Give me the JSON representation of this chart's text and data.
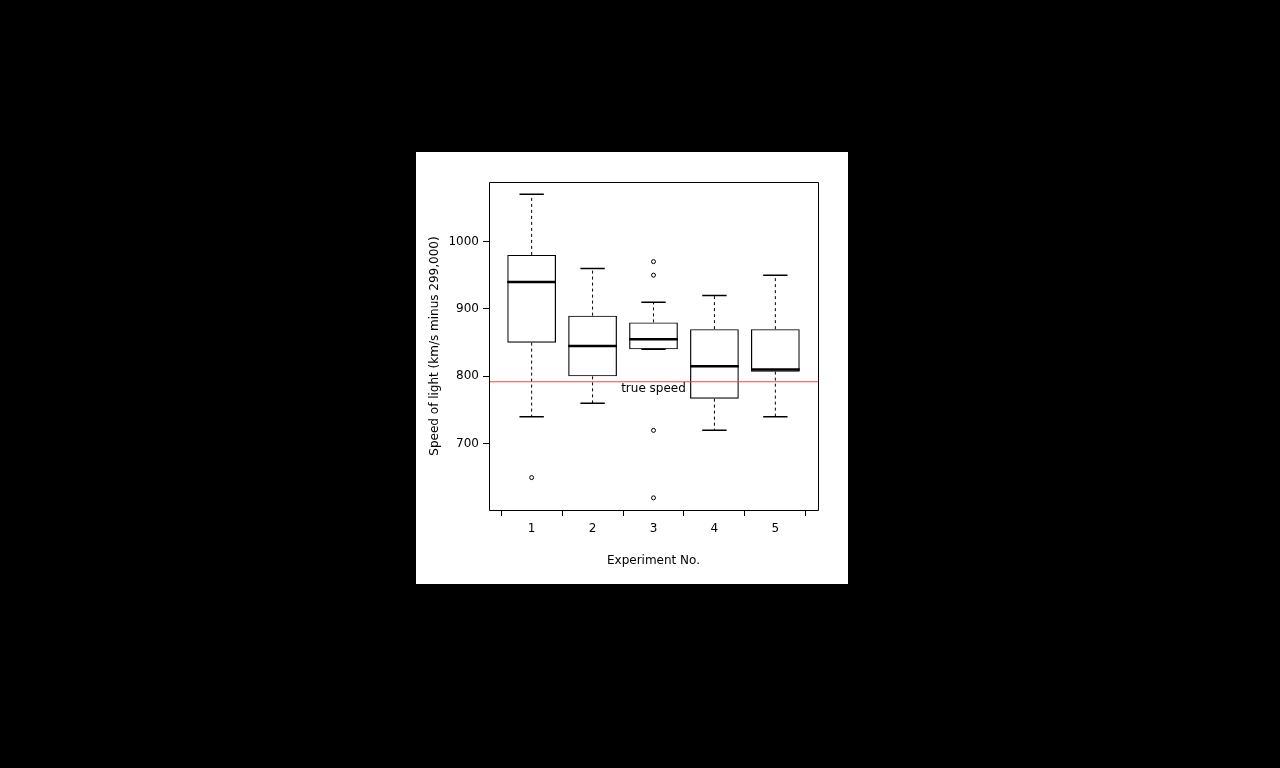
{
  "chart_data": {
    "type": "box",
    "xlabel": "Experiment No.",
    "ylabel": "Speed of light (km/s minus 299,000)",
    "categories": [
      "1",
      "2",
      "3",
      "4",
      "5"
    ],
    "boxes": [
      {
        "low": 740,
        "q1": 850,
        "median": 940,
        "q3": 980,
        "high": 1070,
        "outliers": [
          650
        ]
      },
      {
        "low": 760,
        "q1": 800,
        "median": 845,
        "q3": 890,
        "high": 960
      },
      {
        "low": 840,
        "q1": 840,
        "median": 855,
        "q3": 880,
        "high": 910,
        "outliers": [
          620,
          720,
          950,
          970
        ]
      },
      {
        "low": 720,
        "q1": 767,
        "median": 815,
        "q3": 870,
        "high": 920
      },
      {
        "low": 740,
        "q1": 807,
        "median": 810,
        "q3": 870,
        "high": 950
      }
    ],
    "color": "#000000",
    "ylim": [
      602,
      1088
    ],
    "yticks": [
      700,
      800,
      900,
      1000
    ],
    "ref_lines": [
      {
        "axis": "y",
        "value": 792,
        "label": "true speed",
        "color": "#ff4040"
      }
    ],
    "grid": false,
    "legend": false
  }
}
